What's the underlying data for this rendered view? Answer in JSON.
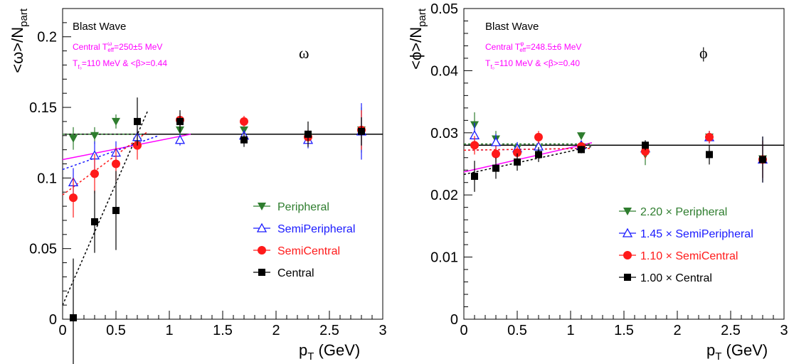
{
  "colors": {
    "peripheral": "#2e7d2e",
    "semiperipheral": "#1a1aff",
    "semicentral": "#ff1a1a",
    "central": "#000000",
    "blastwave": "#ff00ff"
  },
  "chart_data": [
    {
      "type": "scatter",
      "panel": "left",
      "annotation_title": "Blast Wave",
      "annotation_line1": "Central T",
      "annotation_line1_sup": "ω",
      "annotation_line1_sub": "eff",
      "annotation_line1_rest": "=250±5 MeV",
      "annotation_line2": "T",
      "annotation_line2_sub": "f₀",
      "annotation_line2_rest": "=110 MeV & <β>=0.44",
      "particle_label": "ω",
      "ylabel": "<ω>/N",
      "ylabel_sub": "part",
      "xlabel": "p",
      "xlabel_sub": "T",
      "xlabel_rest": " (GeV)",
      "xlim": [
        0,
        3
      ],
      "ylim": [
        0,
        0.22
      ],
      "x_ticks": [
        0,
        0.5,
        1,
        1.5,
        2,
        2.5,
        3
      ],
      "x_tick_labels": [
        "0",
        "0.5",
        "1",
        "1.5",
        "2",
        "2.5",
        "3"
      ],
      "y_ticks": [
        0,
        0.05,
        0.1,
        0.15,
        0.2
      ],
      "y_tick_labels": [
        "0",
        "0.05",
        "0.1",
        "0.15",
        "0.2"
      ],
      "constant_line": 0.131,
      "legend_position": "right",
      "series": [
        {
          "name": "Peripheral",
          "key": "peripheral",
          "marker": "triangle-down",
          "x": [
            0.1,
            0.3,
            0.5,
            0.7,
            1.1,
            1.7,
            2.3,
            2.8
          ],
          "y": [
            0.128,
            0.13,
            0.14,
            0.126,
            0.134,
            0.134,
            0.129,
            0.134
          ],
          "err": [
            0.008,
            0.006,
            0.005,
            0.005,
            0.004,
            0.004,
            0.004,
            0.016
          ],
          "fit": [
            [
              0.0,
              0.131
            ],
            [
              0.75,
              0.131
            ]
          ]
        },
        {
          "name": "SemiPeripheral",
          "key": "semiperipheral",
          "marker": "triangle-up-open",
          "x": [
            0.1,
            0.3,
            0.5,
            0.7,
            1.1,
            1.7,
            2.3,
            2.8
          ],
          "y": [
            0.097,
            0.116,
            0.118,
            0.129,
            0.127,
            0.13,
            0.127,
            0.133
          ],
          "err": [
            0.01,
            0.01,
            0.008,
            0.006,
            0.004,
            0.004,
            0.006,
            0.02
          ],
          "fit": [
            [
              0.0,
              0.106
            ],
            [
              0.9,
              0.13
            ]
          ]
        },
        {
          "name": "SemiCentral",
          "key": "semicentral",
          "marker": "circle",
          "x": [
            0.1,
            0.3,
            0.5,
            0.7,
            1.1,
            1.7,
            2.3,
            2.8
          ],
          "y": [
            0.086,
            0.103,
            0.11,
            0.123,
            0.141,
            0.14,
            0.129,
            0.134
          ],
          "err": [
            0.014,
            0.014,
            0.012,
            0.01,
            0.005,
            0.004,
            0.005,
            0.014
          ],
          "fit": [
            [
              0.0,
              0.088
            ],
            [
              0.8,
              0.133
            ]
          ]
        },
        {
          "name": "Central",
          "key": "central",
          "marker": "square",
          "x": [
            0.1,
            0.3,
            0.5,
            0.7,
            1.1,
            1.7,
            2.3,
            2.8
          ],
          "y": [
            0.001,
            0.069,
            0.077,
            0.14,
            0.14,
            0.127,
            0.131,
            0.133
          ],
          "err": [
            0.042,
            0.022,
            0.028,
            0.017,
            0.008,
            0.005,
            0.009,
            0.01
          ],
          "fit": [
            [
              0.0,
              0.01
            ],
            [
              0.8,
              0.148
            ]
          ]
        }
      ],
      "blast_wave": [
        [
          0.0,
          0.113
        ],
        [
          1.2,
          0.131
        ]
      ]
    },
    {
      "type": "scatter",
      "panel": "right",
      "annotation_title": "Blast Wave",
      "annotation_line1": "Central T",
      "annotation_line1_sup": "φ",
      "annotation_line1_sub": "eff",
      "annotation_line1_rest": "=248.5±6 MeV",
      "annotation_line2": "T",
      "annotation_line2_sub": "f₀",
      "annotation_line2_rest": "=110 MeV & <β>=0.40",
      "particle_label": "ϕ",
      "ylabel": "<ϕ>/N",
      "ylabel_sub": "part",
      "xlabel": "p",
      "xlabel_sub": "T",
      "xlabel_rest": " (GeV)",
      "xlim": [
        0,
        3
      ],
      "ylim": [
        0,
        0.05
      ],
      "x_ticks": [
        0,
        0.5,
        1,
        1.5,
        2,
        2.5,
        3
      ],
      "x_tick_labels": [
        "0",
        "0.5",
        "1",
        "1.5",
        "2",
        "2.5",
        "3"
      ],
      "y_ticks": [
        0,
        0.01,
        0.02,
        0.03,
        0.04,
        0.05
      ],
      "y_tick_labels": [
        "0",
        "0.01",
        "0.02",
        "0.03",
        "0.04",
        "0.05"
      ],
      "constant_line": 0.028,
      "legend_position": "bottom-right",
      "series": [
        {
          "name": "2.20 × Peripheral",
          "key": "peripheral",
          "marker": "triangle-down",
          "x": [
            0.1,
            0.3,
            0.5,
            0.7,
            1.1,
            1.7,
            2.3,
            2.8
          ],
          "y": [
            0.0313,
            0.029,
            0.0275,
            0.0275,
            0.0295,
            0.0265,
            0.0293,
            0.0258
          ],
          "err": [
            0.002,
            0.0013,
            0.001,
            0.001,
            0.0006,
            0.0017,
            0.001,
            0.003
          ],
          "fit": [
            [
              0.0,
              0.0282
            ],
            [
              1.2,
              0.0282
            ]
          ]
        },
        {
          "name": "1.45 × SemiPeripheral",
          "key": "semiperipheral",
          "marker": "triangle-up-open",
          "x": [
            0.1,
            0.3,
            0.5,
            0.7,
            1.1,
            1.7,
            2.3,
            2.8
          ],
          "y": [
            0.0296,
            0.0285,
            0.0275,
            0.0278,
            0.028,
            0.0275,
            0.0293,
            0.0257
          ],
          "err": [
            0.002,
            0.0013,
            0.001,
            0.001,
            0.0007,
            0.0012,
            0.001,
            0.0037
          ],
          "fit": [
            [
              0.0,
              0.0272
            ],
            [
              1.2,
              0.0275
            ]
          ]
        },
        {
          "name": "1.10 × SemiCentral",
          "key": "semicentral",
          "marker": "circle",
          "x": [
            0.1,
            0.3,
            0.5,
            0.7,
            1.1,
            1.7,
            2.3,
            2.8
          ],
          "y": [
            0.028,
            0.0266,
            0.0268,
            0.0293,
            0.0278,
            0.027,
            0.0293,
            0.0257
          ],
          "err": [
            0.0015,
            0.0013,
            0.001,
            0.001,
            0.0006,
            0.0012,
            0.001,
            0.003
          ],
          "fit": [
            [
              0.0,
              0.0272
            ],
            [
              1.2,
              0.0275
            ]
          ]
        },
        {
          "name": "1.00 × Central",
          "key": "central",
          "marker": "square",
          "x": [
            0.1,
            0.3,
            0.5,
            0.7,
            1.1,
            1.7,
            2.3,
            2.8
          ],
          "y": [
            0.023,
            0.0243,
            0.0253,
            0.0265,
            0.0273,
            0.028,
            0.0265,
            0.0257
          ],
          "err": [
            0.0025,
            0.0017,
            0.0014,
            0.0012,
            0.0006,
            0.0008,
            0.0016,
            0.0037
          ],
          "fit": [
            [
              0.0,
              0.0233
            ],
            [
              1.2,
              0.0278
            ]
          ]
        }
      ],
      "blast_wave": [
        [
          0.0,
          0.0237
        ],
        [
          1.2,
          0.0284
        ]
      ]
    }
  ]
}
